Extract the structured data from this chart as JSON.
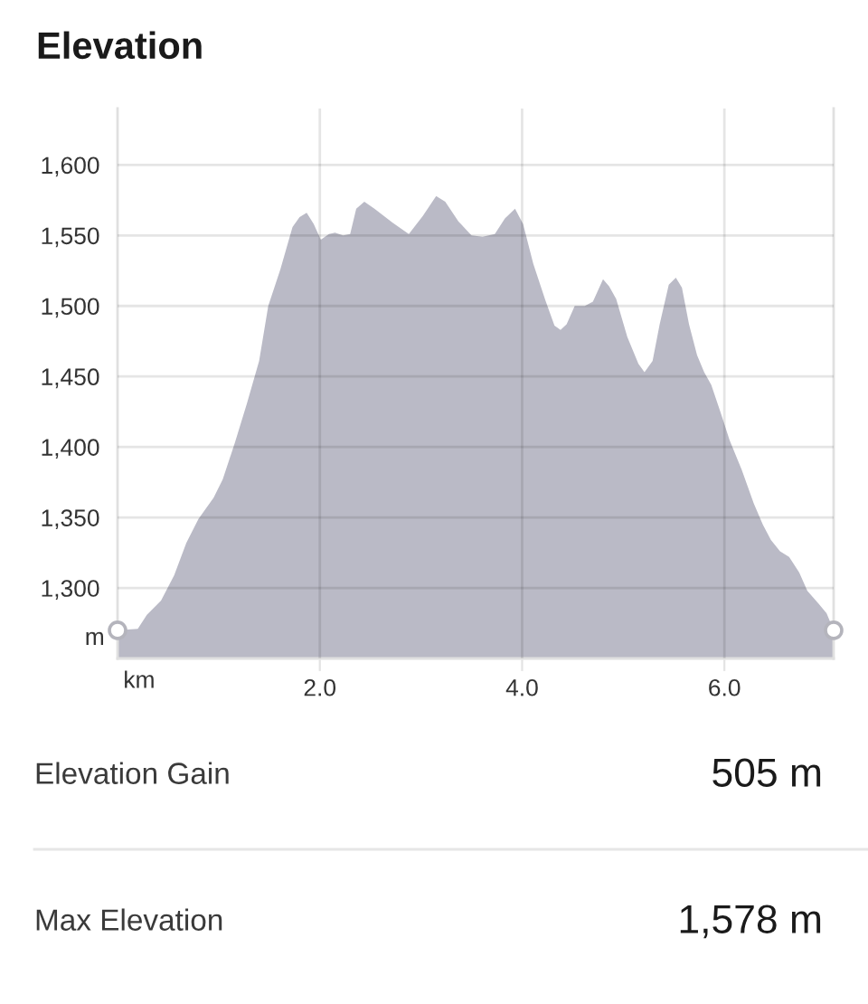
{
  "chart_data": {
    "type": "area",
    "title": "Elevation",
    "xlabel": "km",
    "ylabel": "m",
    "x": [
      0,
      0.2,
      0.29,
      0.43,
      0.56,
      0.68,
      0.8,
      0.95,
      1.04,
      1.16,
      1.28,
      1.4,
      1.49,
      1.61,
      1.73,
      1.8,
      1.87,
      1.94,
      2.01,
      2.09,
      2.15,
      2.23,
      2.3,
      2.36,
      2.44,
      2.54,
      2.72,
      2.88,
      3.02,
      3.15,
      3.24,
      3.37,
      3.5,
      3.61,
      3.73,
      3.83,
      3.93,
      4.01,
      4.11,
      4.23,
      4.32,
      4.38,
      4.44,
      4.52,
      4.62,
      4.7,
      4.8,
      4.86,
      4.93,
      5.04,
      5.15,
      5.21,
      5.29,
      5.36,
      5.45,
      5.52,
      5.58,
      5.65,
      5.73,
      5.8,
      5.87,
      5.96,
      6.05,
      6.17,
      6.29,
      6.38,
      6.46,
      6.55,
      6.64,
      6.74,
      6.82,
      6.93,
      7.01,
      7.08
    ],
    "series": [
      {
        "color": "#babac6",
        "values": [
          1270,
          1271,
          1281,
          1291,
          1309,
          1332,
          1349,
          1364,
          1377,
          1403,
          1431,
          1461,
          1500,
          1526,
          1556,
          1563,
          1566,
          1558,
          1547,
          1551,
          1552,
          1550,
          1551,
          1569,
          1574,
          1569,
          1559,
          1551,
          1564,
          1578,
          1574,
          1560,
          1550,
          1549,
          1551,
          1562,
          1569,
          1558,
          1530,
          1504,
          1486,
          1483,
          1487,
          1500,
          1500,
          1503,
          1519,
          1514,
          1505,
          1478,
          1459,
          1453,
          1461,
          1487,
          1515,
          1520,
          1513,
          1487,
          1465,
          1453,
          1444,
          1425,
          1405,
          1384,
          1360,
          1345,
          1334,
          1326,
          1322,
          1311,
          1298,
          1289,
          1282,
          1270
        ]
      },
      {
        "type": "scatter",
        "marker": "circle",
        "color": "#b4b4bc",
        "x": [
          0,
          7.08
        ],
        "values": [
          1270,
          1270
        ]
      }
    ],
    "xlim": [
      0,
      7.08
    ],
    "ylim": [
      1250,
      1640
    ],
    "xticks": [
      {
        "value": 2,
        "label": "2.0"
      },
      {
        "value": 4,
        "label": "4.0"
      },
      {
        "value": 6,
        "label": "6.0"
      }
    ],
    "yticks": [
      {
        "value": 1300,
        "label": "1,300"
      },
      {
        "value": 1350,
        "label": "1,350"
      },
      {
        "value": 1400,
        "label": "1,400"
      },
      {
        "value": 1450,
        "label": "1,450"
      },
      {
        "value": 1500,
        "label": "1,500"
      },
      {
        "value": 1550,
        "label": "1,550"
      },
      {
        "value": 1600,
        "label": "1,600"
      }
    ],
    "grid": true,
    "annotations": [
      "Elevation Gain",
      "505 m",
      "Max Elevation",
      "1,578 m"
    ]
  }
}
